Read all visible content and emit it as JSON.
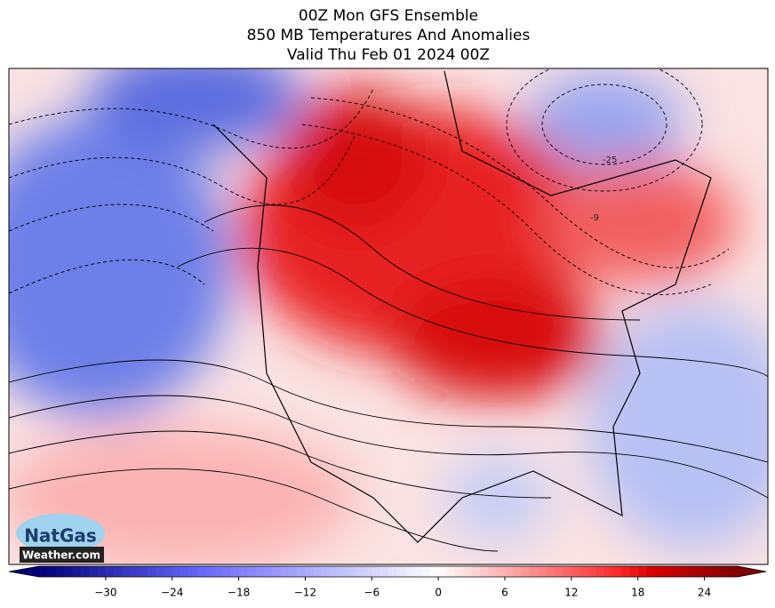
{
  "header": {
    "title_lines": [
      "00Z Mon GFS Ensemble",
      "850 MB Temperatures And Anomalies",
      "Valid Thu Feb 01 2024 00Z"
    ]
  },
  "map": {
    "contour_labels": [
      "-25",
      "-9"
    ],
    "logo": {
      "line1": "NatGas",
      "line2": "Weather.com"
    }
  },
  "colorbar": {
    "lim": [
      -36,
      27
    ],
    "ticks": [
      {
        "value": -30,
        "label": "−30"
      },
      {
        "value": -24,
        "label": "−24"
      },
      {
        "value": -18,
        "label": "−18"
      },
      {
        "value": -12,
        "label": "−12"
      },
      {
        "value": -6,
        "label": "−6"
      },
      0,
      6,
      12,
      18,
      24
    ]
  }
}
